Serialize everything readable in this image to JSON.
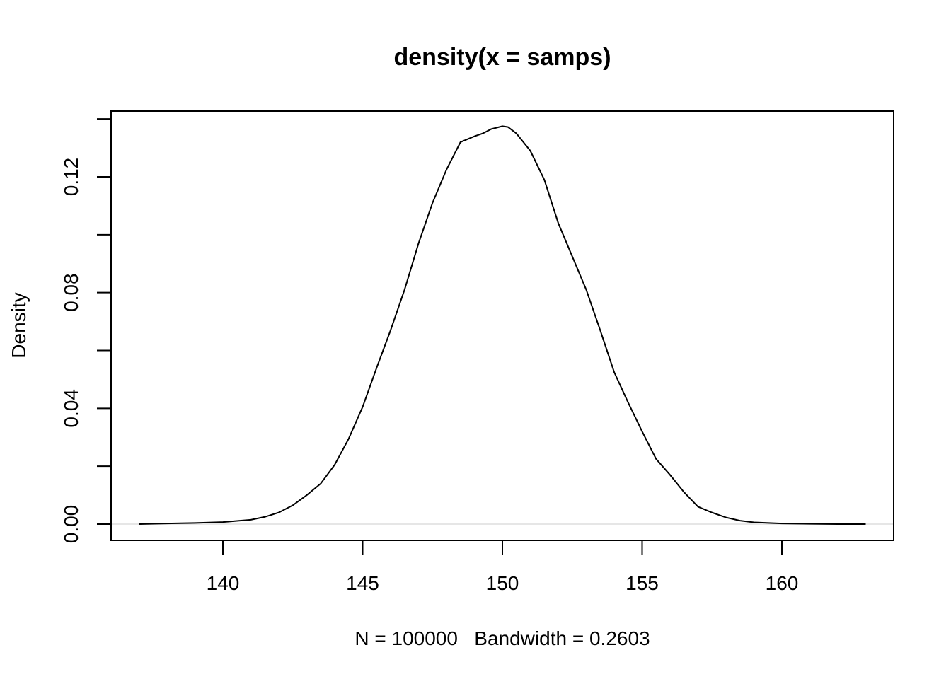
{
  "chart_data": {
    "type": "line",
    "title": "density(x = samps)",
    "xlabel": "N = 100000   Bandwidth = 0.2603",
    "ylabel": "Density",
    "xlim": [
      137,
      163
    ],
    "ylim": [
      0,
      0.137
    ],
    "x_ticks": [
      140,
      145,
      150,
      155,
      160
    ],
    "x_tick_labels": [
      "140",
      "145",
      "150",
      "155",
      "160"
    ],
    "y_ticks": [
      0.0,
      0.02,
      0.04,
      0.06,
      0.08,
      0.1,
      0.12,
      0.14
    ],
    "y_tick_labels": [
      "0.00",
      "",
      "0.04",
      "",
      "0.08",
      "",
      "0.12",
      ""
    ],
    "zero_line": true,
    "grid": false,
    "series": [
      {
        "x": [
          137.0,
          138.0,
          139.0,
          140.0,
          141.0,
          141.5,
          142.0,
          142.5,
          143.0,
          143.5,
          144.0,
          144.5,
          145.0,
          145.5,
          146.0,
          146.5,
          147.0,
          147.5,
          148.0,
          148.5,
          149.0,
          149.3,
          149.6,
          150.0,
          150.2,
          150.5,
          151.0,
          151.5,
          152.0,
          152.5,
          153.0,
          153.5,
          154.0,
          154.5,
          155.0,
          155.5,
          156.0,
          156.5,
          157.0,
          157.5,
          158.0,
          158.5,
          159.0,
          160.0,
          161.0,
          162.0,
          163.0
        ],
        "y": [
          0.0,
          0.0002,
          0.0004,
          0.0007,
          0.0015,
          0.0025,
          0.004,
          0.0065,
          0.01,
          0.014,
          0.0205,
          0.0295,
          0.0405,
          0.054,
          0.067,
          0.081,
          0.097,
          0.111,
          0.1225,
          0.132,
          0.134,
          0.135,
          0.1365,
          0.1375,
          0.1372,
          0.135,
          0.129,
          0.119,
          0.104,
          0.0925,
          0.081,
          0.067,
          0.0525,
          0.042,
          0.032,
          0.0225,
          0.017,
          0.011,
          0.006,
          0.004,
          0.0023,
          0.0012,
          0.0006,
          0.0002,
          0.0001,
          0.0,
          0.0
        ]
      }
    ]
  }
}
